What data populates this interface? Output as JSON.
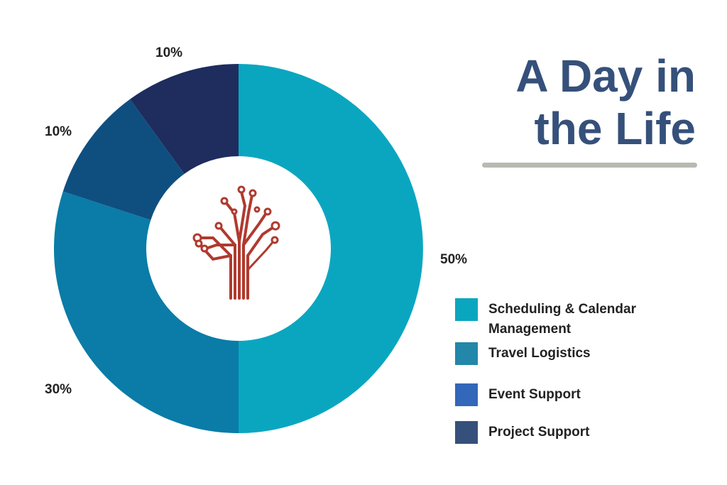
{
  "title": {
    "line1": "A Day in",
    "line2": "the Life"
  },
  "colors": {
    "title": "#35507a",
    "rule": "#b9b9b3",
    "logo": "#b03a2e"
  },
  "logo": {
    "icon": "circuit-tree-icon"
  },
  "chart_data": {
    "type": "pie",
    "style": "donut",
    "title": "A Day in the Life",
    "slices": [
      {
        "name": "Scheduling & Calendar Management",
        "value": 50,
        "label": "50%",
        "color": "#0aa6c0"
      },
      {
        "name": "Travel Logistics",
        "value": 30,
        "label": "30%",
        "color": "#0a7ca7"
      },
      {
        "name": "Event Support",
        "value": 10,
        "label": "10%",
        "color": "#0f4f80"
      },
      {
        "name": "Project Support",
        "value": 10,
        "label": "10%",
        "color": "#1e2c5e"
      }
    ]
  },
  "legend": {
    "items": [
      {
        "label": "Scheduling & Calendar Management",
        "color": "#0aa6c0"
      },
      {
        "label": "Travel Logistics",
        "color": "#2287a8"
      },
      {
        "label": "Event Support",
        "color": "#3267b9"
      },
      {
        "label": "Project Support",
        "color": "#35507a"
      }
    ]
  }
}
